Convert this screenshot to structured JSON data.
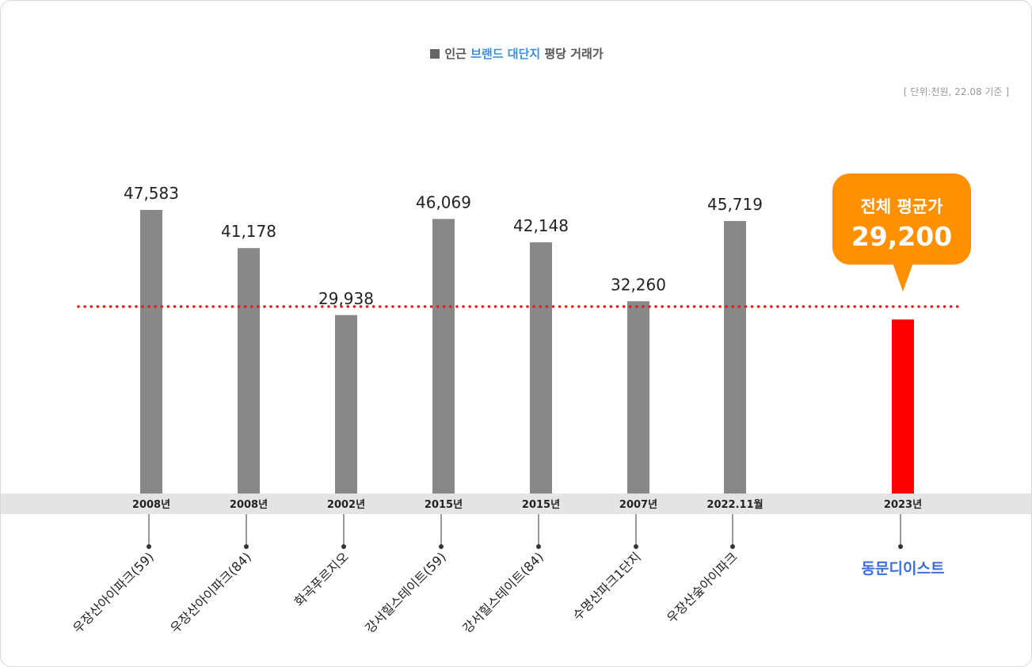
{
  "header": {
    "title_prefix": "인근 ",
    "title_highlight": "브랜드 대단지",
    "title_suffix": " 평당 거래가",
    "unit_note": "[ 단위:천원, 22.08 기준 ]"
  },
  "callout": {
    "label": "전체 평균가",
    "value": "29,200"
  },
  "chart_data": {
    "type": "bar",
    "categories": [
      "우장산아이파크(59)",
      "우장산아이파크(84)",
      "화곡푸르지오",
      "강서힐스테이트(59)",
      "강서힐스테이트(84)",
      "수명산파크1단지",
      "우장산숲아이파크",
      "동문디이스트"
    ],
    "years": [
      "2008년",
      "2008년",
      "2002년",
      "2015년",
      "2015년",
      "2007년",
      "2022.11월",
      "2023년"
    ],
    "values": [
      47583,
      41178,
      29938,
      46069,
      42148,
      32260,
      45719,
      29200
    ],
    "value_labels": [
      "47,583",
      "41,178",
      "29,938",
      "46,069",
      "42,148",
      "32,260",
      "45,719",
      ""
    ],
    "average": 29200,
    "highlight_index": 7,
    "colors": {
      "bar": "#888888",
      "highlight": "#ff0000",
      "average_line": "#e8191a",
      "callout": "#ff9000",
      "highlight_label": "#3b6fd9"
    }
  }
}
